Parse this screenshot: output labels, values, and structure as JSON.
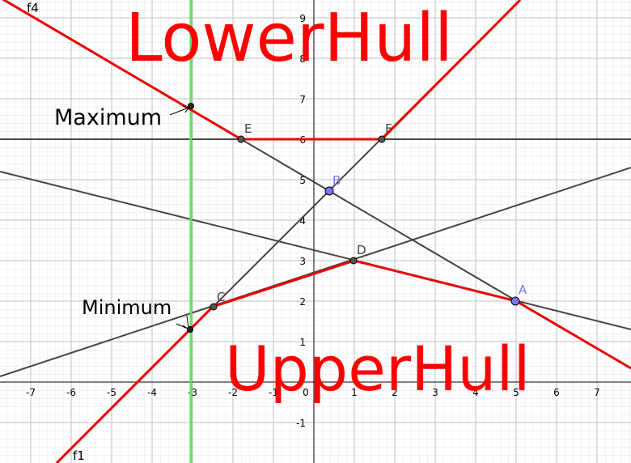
{
  "chart_data": {
    "type": "geometry",
    "xlim": [
      -7.76,
      7.84
    ],
    "ylim": [
      -2,
      9.44
    ],
    "xticks": [
      -7,
      -6,
      -5,
      -4,
      -3,
      -2,
      -1,
      0,
      1,
      2,
      3,
      4,
      5,
      6,
      7
    ],
    "yticks": [
      -1,
      1,
      2,
      3,
      4,
      5,
      6,
      7,
      8,
      9
    ],
    "grid": true,
    "region_labels": [
      "LowerHull",
      "UpperHull"
    ],
    "annotations": [
      "Maximum",
      "Minimum"
    ],
    "point_labels": [
      "E",
      "F",
      "B",
      "D",
      "A",
      "C"
    ],
    "function_labels": [
      "f4",
      "f1"
    ]
  }
}
